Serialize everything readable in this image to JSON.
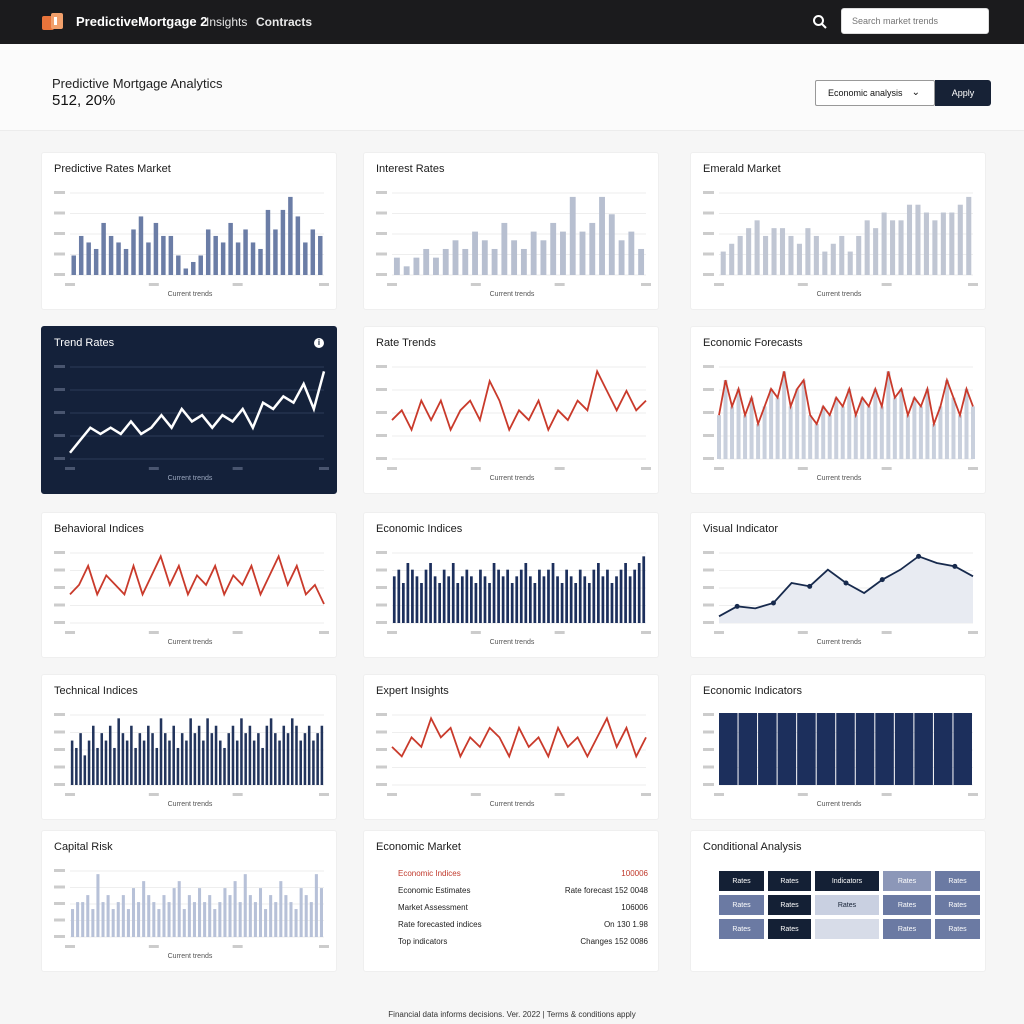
{
  "topbar": {
    "app_name": "PredictiveMortgage 2",
    "nav": [
      "Insights",
      "Contracts"
    ],
    "search_placeholder": "Search market trends",
    "logo_color": "#e8743b",
    "background": "#1b1b1d"
  },
  "header": {
    "title": "Predictive Mortgage Analytics",
    "subtitle": "512, 20%",
    "filter_label": "Economic analysis",
    "apply_label": "Apply"
  },
  "colors": {
    "navy": "#172a4d",
    "slate": "#6b7da6",
    "light": "#b7bfd0",
    "red": "#c93a2b",
    "dark_card": "#14213a"
  },
  "cards": [
    {
      "title": "Predictive Rates Market",
      "type": "bar",
      "color": "#6b7da6",
      "xlabel": "Current trends",
      "values": [
        3,
        6,
        5,
        4,
        8,
        6,
        5,
        4,
        7,
        9,
        5,
        8,
        6,
        6,
        3,
        1,
        2,
        3,
        7,
        6,
        5,
        8,
        5,
        7,
        5,
        4,
        10,
        7,
        10,
        12,
        9,
        5,
        7,
        6
      ]
    },
    {
      "title": "Interest Rates",
      "type": "bar",
      "color": "#b7bfd0",
      "xlabel": "Current trends",
      "values": [
        2,
        1,
        2,
        3,
        2,
        3,
        4,
        3,
        5,
        4,
        3,
        6,
        4,
        3,
        5,
        4,
        6,
        5,
        9,
        5,
        6,
        9,
        7,
        4,
        5,
        3
      ]
    },
    {
      "title": "Emerald Market",
      "type": "bar",
      "color": "#c0c6d3",
      "xlabel": "Current trends",
      "values": [
        3,
        4,
        5,
        6,
        7,
        5,
        6,
        6,
        5,
        4,
        6,
        5,
        3,
        4,
        5,
        3,
        5,
        7,
        6,
        8,
        7,
        7,
        9,
        9,
        8,
        7,
        8,
        8,
        9,
        10
      ]
    },
    {
      "title": "Trend Rates",
      "type": "line",
      "dark": true,
      "color": "#ffffff",
      "xlabel": "Current trends",
      "values": [
        1,
        3,
        5,
        4,
        5,
        4,
        6,
        4,
        5,
        7,
        5,
        8,
        6,
        7,
        5,
        7,
        6,
        8,
        5,
        9,
        8,
        10,
        9,
        12,
        8,
        14
      ]
    },
    {
      "title": "Rate Trends",
      "type": "line",
      "color": "#c93a2b",
      "xlabel": "Current trends",
      "values": [
        4,
        5,
        3,
        6,
        4,
        6,
        3,
        5,
        6,
        4,
        8,
        6,
        3,
        5,
        4,
        6,
        3,
        5,
        4,
        6,
        5,
        9,
        7,
        5,
        7,
        5,
        6
      ]
    },
    {
      "title": "Economic Forecasts",
      "type": "area-line",
      "color": "#c93a2b",
      "fill": "#c9d0dd",
      "xlabel": "Current trends",
      "values": [
        5,
        9,
        6,
        8,
        5,
        7,
        4,
        6,
        8,
        7,
        10,
        6,
        8,
        9,
        5,
        4,
        6,
        5,
        7,
        6,
        8,
        5,
        7,
        6,
        8,
        6,
        10,
        7,
        8,
        5,
        7,
        6,
        8,
        4,
        6,
        9,
        7,
        5,
        8,
        6
      ]
    },
    {
      "title": "Behavioral Indices",
      "type": "line",
      "color": "#c93a2b",
      "xlabel": "Current trends",
      "values": [
        3,
        4,
        6,
        3,
        5,
        4,
        3,
        6,
        3,
        5,
        7,
        4,
        6,
        3,
        5,
        4,
        6,
        3,
        5,
        4,
        6,
        3,
        5,
        7,
        4,
        6,
        3,
        4,
        2
      ]
    },
    {
      "title": "Economic Indices",
      "type": "bar",
      "color": "#1c2f5c",
      "xlabel": "Current trends",
      "values": [
        7,
        8,
        6,
        9,
        8,
        7,
        6,
        8,
        9,
        7,
        6,
        8,
        7,
        9,
        6,
        7,
        8,
        7,
        6,
        8,
        7,
        6,
        9,
        8,
        7,
        8,
        6,
        7,
        8,
        9,
        7,
        6,
        8,
        7,
        8,
        9,
        7,
        6,
        8,
        7,
        6,
        8,
        7,
        6,
        8,
        9,
        7,
        8,
        6,
        7,
        8,
        9,
        7,
        8,
        9,
        10
      ]
    },
    {
      "title": "Visual Indicator",
      "type": "area-line-dots",
      "color": "#172a4d",
      "fill": "#e8ebf2",
      "xlabel": "Current trends",
      "values": [
        1,
        2.5,
        2.2,
        3,
        6,
        5.5,
        8,
        6,
        4.5,
        6.5,
        8,
        10,
        9,
        8.5,
        7
      ]
    },
    {
      "title": "Technical Indices",
      "type": "bar",
      "color": "#22345c",
      "xlabel": "Current trends",
      "values": [
        6,
        5,
        7,
        4,
        6,
        8,
        5,
        7,
        6,
        8,
        5,
        9,
        7,
        6,
        8,
        5,
        7,
        6,
        8,
        7,
        5,
        9,
        7,
        6,
        8,
        5,
        7,
        6,
        9,
        7,
        8,
        6,
        9,
        7,
        8,
        6,
        5,
        7,
        8,
        6,
        9,
        7,
        8,
        6,
        7,
        5,
        8,
        9,
        7,
        6,
        8,
        7,
        9,
        8,
        6,
        7,
        8,
        6,
        7,
        8
      ]
    },
    {
      "title": "Expert Insights",
      "type": "line",
      "color": "#c93a2b",
      "xlabel": "Current trends",
      "values": [
        4,
        3,
        5,
        4,
        7,
        5,
        6,
        3,
        5,
        4,
        6,
        5,
        3,
        6,
        4,
        5,
        3,
        6,
        4,
        5,
        3,
        5,
        7,
        4,
        6,
        3,
        5
      ]
    },
    {
      "title": "Economic Indicators",
      "type": "blocks",
      "color": "#1c2f5c",
      "xlabel": "Current trends",
      "values": [
        1,
        1,
        1,
        1,
        1,
        1,
        1,
        1,
        1,
        1,
        1,
        1,
        1
      ]
    },
    {
      "title": "Capital Risk",
      "type": "bar",
      "color": "#b7c1d8",
      "xlabel": "Current trends",
      "values": [
        4,
        5,
        5,
        6,
        4,
        9,
        5,
        6,
        4,
        5,
        6,
        4,
        7,
        5,
        8,
        6,
        5,
        4,
        6,
        5,
        7,
        8,
        4,
        6,
        5,
        7,
        5,
        6,
        4,
        5,
        7,
        6,
        8,
        5,
        9,
        6,
        5,
        7,
        4,
        6,
        5,
        8,
        6,
        5,
        4,
        7,
        6,
        5,
        9,
        7
      ]
    },
    {
      "title": "Economic Market",
      "type": "table",
      "rows": [
        [
          "Economic Indices",
          "100006"
        ],
        [
          "Economic Estimates",
          "Rate forecast 152 0048"
        ],
        [
          "Market Assessment",
          "106006"
        ],
        [
          "Rate forecasted indices",
          "On 130 1.98"
        ],
        [
          "Top indicators",
          "Changes 152 0086"
        ]
      ]
    },
    {
      "title": "Conditional Analysis",
      "type": "grid",
      "cells": [
        [
          "Rates",
          "Rates",
          "Indicators",
          "Rates",
          "Rates"
        ],
        [
          "Rates",
          "Rates",
          "Rates",
          "Rates",
          "Rates"
        ],
        [
          "Rates",
          "Rates",
          "",
          "Rates",
          "Rates"
        ]
      ],
      "cell_colors": [
        [
          "#142035",
          "#142035",
          "#142035",
          "#8c97b8",
          "#6b7aa3"
        ],
        [
          "#6b7aa3",
          "#142035",
          "#c9d0e1",
          "#6b7aa3",
          "#6b7aa3"
        ],
        [
          "#6b7aa3",
          "#142035",
          "#d7dce8",
          "#6b7aa3",
          "#6b7aa3"
        ]
      ]
    }
  ],
  "footer": "Financial data informs decisions. Ver. 2022 | Terms & conditions apply"
}
